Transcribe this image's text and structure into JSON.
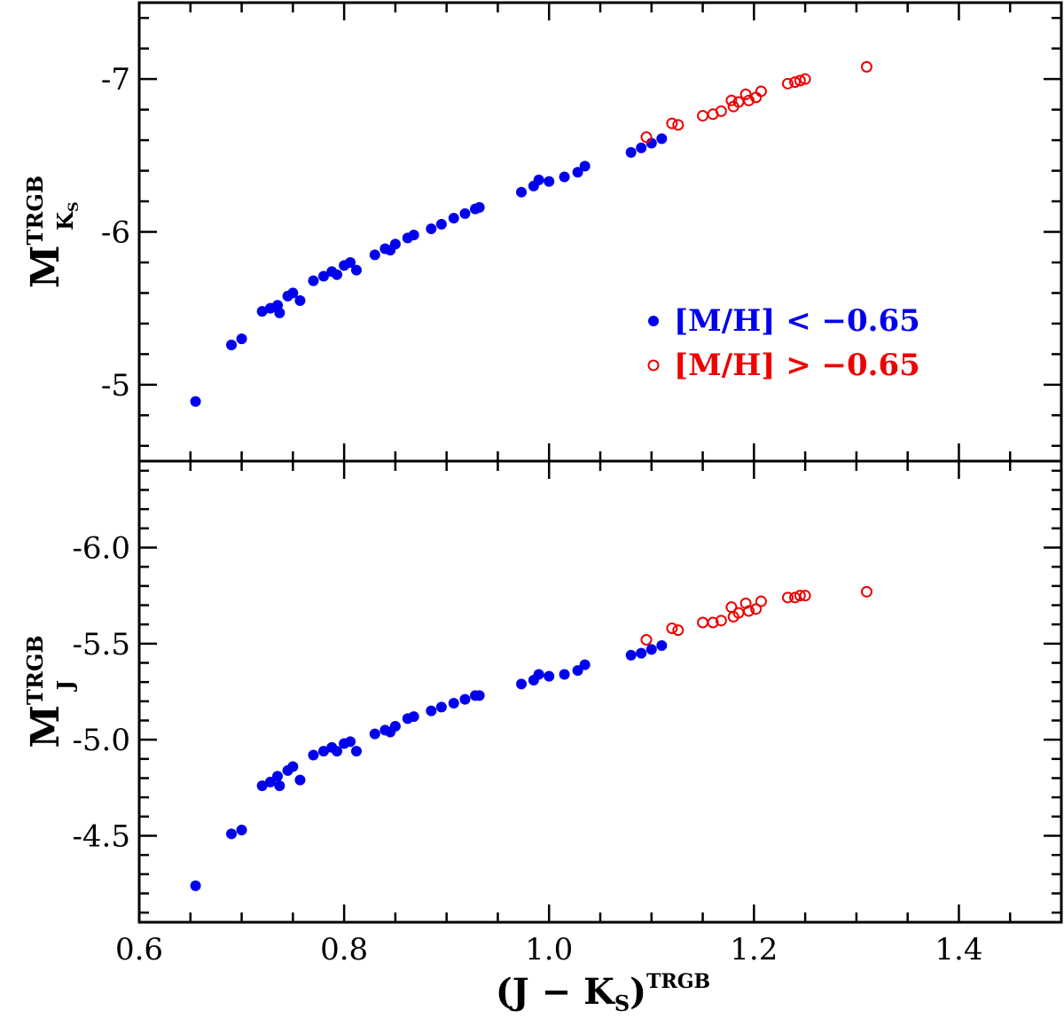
{
  "chart_data": [
    {
      "type": "scatter",
      "panel": "top",
      "ylabel": {
        "main": "M",
        "sup": "TRGB",
        "sub": "K",
        "subsub": "S"
      },
      "xlim": [
        0.6,
        1.5
      ],
      "ylim": [
        -4.5,
        -7.5
      ],
      "yticks": [
        -7,
        -6,
        -5
      ],
      "ytick_labels": [
        "-7",
        "-6",
        "-5"
      ],
      "legend": {
        "placement": "center-right",
        "entries": [
          {
            "series": 0,
            "label": "[M/H] < −0.65"
          },
          {
            "series": 1,
            "label": "[M/H] > −0.65"
          }
        ]
      },
      "series": [
        {
          "marker": "filled-circle",
          "color": "#0000ee",
          "points": [
            [
              0.655,
              -4.89
            ],
            [
              0.69,
              -5.26
            ],
            [
              0.7,
              -5.3
            ],
            [
              0.72,
              -5.48
            ],
            [
              0.728,
              -5.5
            ],
            [
              0.735,
              -5.52
            ],
            [
              0.737,
              -5.47
            ],
            [
              0.745,
              -5.58
            ],
            [
              0.75,
              -5.6
            ],
            [
              0.757,
              -5.55
            ],
            [
              0.77,
              -5.68
            ],
            [
              0.78,
              -5.71
            ],
            [
              0.788,
              -5.74
            ],
            [
              0.793,
              -5.72
            ],
            [
              0.8,
              -5.78
            ],
            [
              0.806,
              -5.8
            ],
            [
              0.812,
              -5.75
            ],
            [
              0.83,
              -5.85
            ],
            [
              0.84,
              -5.89
            ],
            [
              0.845,
              -5.88
            ],
            [
              0.85,
              -5.92
            ],
            [
              0.862,
              -5.96
            ],
            [
              0.868,
              -5.98
            ],
            [
              0.885,
              -6.02
            ],
            [
              0.895,
              -6.05
            ],
            [
              0.907,
              -6.09
            ],
            [
              0.918,
              -6.12
            ],
            [
              0.928,
              -6.15
            ],
            [
              0.932,
              -6.16
            ],
            [
              0.973,
              -6.26
            ],
            [
              0.985,
              -6.3
            ],
            [
              0.99,
              -6.34
            ],
            [
              1.0,
              -6.33
            ],
            [
              1.015,
              -6.36
            ],
            [
              1.028,
              -6.39
            ],
            [
              1.035,
              -6.43
            ],
            [
              1.08,
              -6.52
            ],
            [
              1.09,
              -6.55
            ],
            [
              1.1,
              -6.58
            ],
            [
              1.11,
              -6.61
            ]
          ]
        },
        {
          "marker": "open-circle",
          "color": "#ee0000",
          "points": [
            [
              1.095,
              -6.62
            ],
            [
              1.12,
              -6.71
            ],
            [
              1.126,
              -6.7
            ],
            [
              1.15,
              -6.76
            ],
            [
              1.16,
              -6.77
            ],
            [
              1.168,
              -6.79
            ],
            [
              1.178,
              -6.86
            ],
            [
              1.18,
              -6.82
            ],
            [
              1.185,
              -6.85
            ],
            [
              1.192,
              -6.9
            ],
            [
              1.195,
              -6.86
            ],
            [
              1.202,
              -6.88
            ],
            [
              1.207,
              -6.92
            ],
            [
              1.233,
              -6.97
            ],
            [
              1.24,
              -6.98
            ],
            [
              1.245,
              -6.99
            ],
            [
              1.25,
              -7.0
            ],
            [
              1.31,
              -7.08
            ]
          ]
        }
      ]
    },
    {
      "type": "scatter",
      "panel": "bottom",
      "xlabel": {
        "main": "(J − K",
        "sub": "S",
        "close": ")",
        "sup": "TRGB"
      },
      "ylabel": {
        "main": "M",
        "sup": "TRGB",
        "sub": "J"
      },
      "xlim": [
        0.6,
        1.5
      ],
      "xticks": [
        0.6,
        0.8,
        1.0,
        1.2,
        1.4
      ],
      "xtick_labels": [
        "0.6",
        "0.8",
        "1.0",
        "1.2",
        "1.4"
      ],
      "ylim": [
        -4.05,
        -6.45
      ],
      "yticks": [
        -6.0,
        -5.5,
        -5.0,
        -4.5
      ],
      "ytick_labels": [
        "-6.0",
        "-5.5",
        "-5.0",
        "-4.5"
      ],
      "series": [
        {
          "marker": "filled-circle",
          "color": "#0000ee",
          "points": [
            [
              0.655,
              -4.24
            ],
            [
              0.69,
              -4.51
            ],
            [
              0.7,
              -4.53
            ],
            [
              0.72,
              -4.76
            ],
            [
              0.728,
              -4.78
            ],
            [
              0.735,
              -4.81
            ],
            [
              0.737,
              -4.76
            ],
            [
              0.745,
              -4.84
            ],
            [
              0.75,
              -4.86
            ],
            [
              0.757,
              -4.79
            ],
            [
              0.77,
              -4.92
            ],
            [
              0.78,
              -4.94
            ],
            [
              0.788,
              -4.96
            ],
            [
              0.793,
              -4.94
            ],
            [
              0.8,
              -4.98
            ],
            [
              0.806,
              -4.99
            ],
            [
              0.812,
              -4.94
            ],
            [
              0.83,
              -5.03
            ],
            [
              0.84,
              -5.05
            ],
            [
              0.845,
              -5.04
            ],
            [
              0.85,
              -5.07
            ],
            [
              0.862,
              -5.11
            ],
            [
              0.868,
              -5.12
            ],
            [
              0.885,
              -5.15
            ],
            [
              0.895,
              -5.17
            ],
            [
              0.907,
              -5.19
            ],
            [
              0.918,
              -5.21
            ],
            [
              0.928,
              -5.23
            ],
            [
              0.932,
              -5.23
            ],
            [
              0.973,
              -5.29
            ],
            [
              0.985,
              -5.31
            ],
            [
              0.99,
              -5.34
            ],
            [
              1.0,
              -5.33
            ],
            [
              1.015,
              -5.34
            ],
            [
              1.028,
              -5.36
            ],
            [
              1.035,
              -5.39
            ],
            [
              1.08,
              -5.44
            ],
            [
              1.09,
              -5.45
            ],
            [
              1.1,
              -5.47
            ],
            [
              1.11,
              -5.49
            ]
          ]
        },
        {
          "marker": "open-circle",
          "color": "#ee0000",
          "points": [
            [
              1.095,
              -5.52
            ],
            [
              1.12,
              -5.58
            ],
            [
              1.126,
              -5.57
            ],
            [
              1.15,
              -5.61
            ],
            [
              1.16,
              -5.61
            ],
            [
              1.168,
              -5.62
            ],
            [
              1.178,
              -5.69
            ],
            [
              1.18,
              -5.64
            ],
            [
              1.185,
              -5.66
            ],
            [
              1.192,
              -5.71
            ],
            [
              1.195,
              -5.67
            ],
            [
              1.202,
              -5.68
            ],
            [
              1.207,
              -5.72
            ],
            [
              1.233,
              -5.74
            ],
            [
              1.24,
              -5.74
            ],
            [
              1.245,
              -5.75
            ],
            [
              1.25,
              -5.75
            ],
            [
              1.31,
              -5.77
            ]
          ]
        }
      ]
    }
  ]
}
